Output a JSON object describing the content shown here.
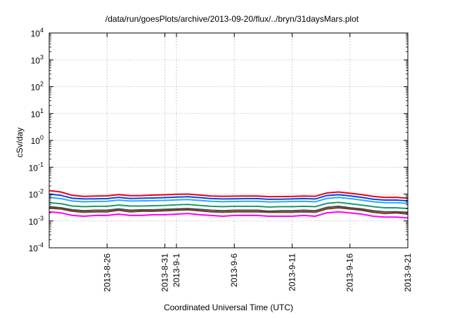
{
  "chart_data": {
    "type": "line",
    "title": "/data/run/goesPlots/archive/2013-09-20/flux/../bryn/31daysMars.plot",
    "xlabel": "Coordinated Universal Time (UTC)",
    "ylabel": "cSv/day",
    "yscale": "log",
    "ylim": [
      0.0001,
      10000
    ],
    "y_ticks": [
      {
        "value": 0.0001,
        "base": "10",
        "exp": "-4"
      },
      {
        "value": 0.001,
        "base": "10",
        "exp": "-3"
      },
      {
        "value": 0.01,
        "base": "10",
        "exp": "-2"
      },
      {
        "value": 0.1,
        "base": "10",
        "exp": "-1"
      },
      {
        "value": 1,
        "base": "10",
        "exp": "0"
      },
      {
        "value": 10,
        "base": "10",
        "exp": "1"
      },
      {
        "value": 100,
        "base": "10",
        "exp": "2"
      },
      {
        "value": 1000,
        "base": "10",
        "exp": "3"
      },
      {
        "value": 10000,
        "base": "10",
        "exp": "4"
      }
    ],
    "xlim": [
      "2013-08-21",
      "2013-09-21"
    ],
    "x_ticks": [
      {
        "date": "2013-08-26",
        "label": "2013-8-26"
      },
      {
        "date": "2013-08-31",
        "label": "2013-8-31"
      },
      {
        "date": "2013-09-01",
        "label": "2013-9-1"
      },
      {
        "date": "2013-09-06",
        "label": "2013-9-6"
      },
      {
        "date": "2013-09-11",
        "label": "2013-9-11"
      },
      {
        "date": "2013-09-16",
        "label": "2013-9-16"
      },
      {
        "date": "2013-09-21",
        "label": "2013-9-21"
      }
    ],
    "grid": true,
    "x": [
      "2013-08-21",
      "2013-08-22",
      "2013-08-23",
      "2013-08-24",
      "2013-08-25",
      "2013-08-26",
      "2013-08-27",
      "2013-08-28",
      "2013-08-29",
      "2013-08-30",
      "2013-08-31",
      "2013-09-01",
      "2013-09-02",
      "2013-09-03",
      "2013-09-04",
      "2013-09-05",
      "2013-09-06",
      "2013-09-07",
      "2013-09-08",
      "2013-09-09",
      "2013-09-10",
      "2013-09-11",
      "2013-09-12",
      "2013-09-13",
      "2013-09-14",
      "2013-09-15",
      "2013-09-16",
      "2013-09-17",
      "2013-09-18",
      "2013-09-19",
      "2013-09-20",
      "2013-09-21"
    ],
    "series": [
      {
        "color": "#e8001a",
        "values": [
          0.0135,
          0.012,
          0.009,
          0.0082,
          0.0085,
          0.0086,
          0.0096,
          0.0087,
          0.0088,
          0.0092,
          0.0094,
          0.0098,
          0.01,
          0.0092,
          0.0085,
          0.0083,
          0.0084,
          0.0085,
          0.0085,
          0.008,
          0.0081,
          0.0082,
          0.0085,
          0.0083,
          0.011,
          0.012,
          0.0108,
          0.0096,
          0.0082,
          0.0075,
          0.0076,
          0.007
        ]
      },
      {
        "color": "#0047e6",
        "values": [
          0.01,
          0.009,
          0.007,
          0.0066,
          0.0067,
          0.0068,
          0.0076,
          0.0069,
          0.007,
          0.0072,
          0.0074,
          0.0077,
          0.008,
          0.0074,
          0.0068,
          0.0066,
          0.0067,
          0.0068,
          0.0068,
          0.0064,
          0.0065,
          0.0066,
          0.0068,
          0.0066,
          0.0088,
          0.0095,
          0.0086,
          0.0076,
          0.0065,
          0.006,
          0.006,
          0.0056
        ]
      },
      {
        "color": "#2aa8ff",
        "values": [
          0.0075,
          0.0068,
          0.0055,
          0.0052,
          0.0053,
          0.0054,
          0.006,
          0.0055,
          0.0056,
          0.0057,
          0.0058,
          0.0061,
          0.0063,
          0.0058,
          0.0054,
          0.0052,
          0.0053,
          0.0054,
          0.0054,
          0.0051,
          0.0052,
          0.0053,
          0.0054,
          0.0052,
          0.0069,
          0.0075,
          0.0068,
          0.006,
          0.0052,
          0.0048,
          0.0048,
          0.0045
        ]
      },
      {
        "color": "#1a9a6a",
        "values": [
          0.0048,
          0.0044,
          0.0036,
          0.0034,
          0.0035,
          0.0035,
          0.0039,
          0.0036,
          0.0036,
          0.0037,
          0.0038,
          0.004,
          0.0041,
          0.0038,
          0.0035,
          0.0034,
          0.0035,
          0.0035,
          0.0035,
          0.0033,
          0.0034,
          0.0034,
          0.0035,
          0.0034,
          0.0045,
          0.0049,
          0.0044,
          0.0039,
          0.0034,
          0.0031,
          0.0031,
          0.0029
        ]
      },
      {
        "color": "#4a4a4a",
        "values": [
          0.0034,
          0.0031,
          0.0026,
          0.0024,
          0.0025,
          0.0025,
          0.0028,
          0.0025,
          0.0026,
          0.0026,
          0.0027,
          0.0028,
          0.0029,
          0.0027,
          0.0025,
          0.0024,
          0.0025,
          0.0025,
          0.0025,
          0.0023,
          0.0024,
          0.0024,
          0.0025,
          0.0024,
          0.0032,
          0.0035,
          0.0031,
          0.0028,
          0.0024,
          0.0022,
          0.0022,
          0.0021
        ]
      },
      {
        "color": "#7a3a1a",
        "values": [
          0.003,
          0.0028,
          0.0023,
          0.0021,
          0.0022,
          0.0022,
          0.0025,
          0.0022,
          0.0023,
          0.0023,
          0.0024,
          0.0025,
          0.0026,
          0.0024,
          0.0022,
          0.0021,
          0.0022,
          0.0022,
          0.0022,
          0.0021,
          0.0021,
          0.0021,
          0.0022,
          0.0021,
          0.0028,
          0.0031,
          0.0028,
          0.0025,
          0.0021,
          0.0019,
          0.002,
          0.0018
        ]
      },
      {
        "color": "#ff00ff",
        "values": [
          0.0022,
          0.002,
          0.0016,
          0.0015,
          0.0016,
          0.0016,
          0.0018,
          0.0016,
          0.0016,
          0.0017,
          0.0017,
          0.0018,
          0.0019,
          0.0017,
          0.0016,
          0.0015,
          0.0016,
          0.0016,
          0.0016,
          0.0015,
          0.0015,
          0.0015,
          0.0016,
          0.0015,
          0.002,
          0.0022,
          0.002,
          0.0018,
          0.0015,
          0.0014,
          0.0014,
          0.0013
        ]
      }
    ]
  }
}
